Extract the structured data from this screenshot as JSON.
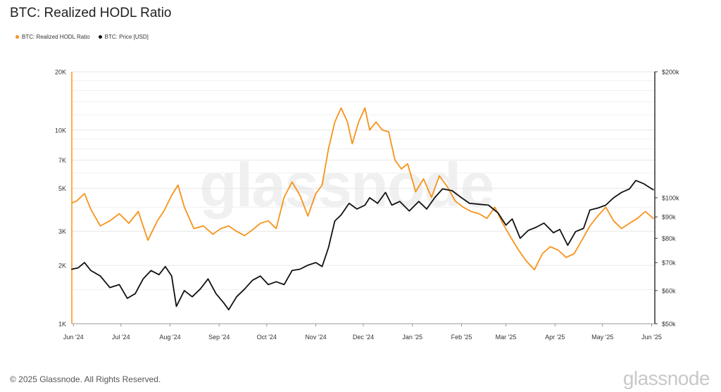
{
  "title": "BTC: Realized HODL Ratio",
  "footer": "© 2025 Glassnode. All Rights Reserved.",
  "brand": "glassnode",
  "watermark": "glassnode",
  "colors": {
    "hodl": "#f7931a",
    "price": "#111111",
    "grid": "#e6e6e6",
    "axis": "#333333"
  },
  "chart_data": {
    "type": "line",
    "title": "BTC: Realized HODL Ratio",
    "legend_position": "top-left",
    "grid": true,
    "x_ticks": [
      "Jun '24",
      "Jul '24",
      "Aug '24",
      "Sep '24",
      "Oct '24",
      "Nov '24",
      "Dec '24",
      "Jan '25",
      "Feb '25",
      "Mar '25",
      "Apr '25",
      "May '25",
      "Jun '25"
    ],
    "y_left": {
      "scale": "log",
      "range": [
        1000,
        20000
      ],
      "ticks": [
        1000,
        2000,
        3000,
        5000,
        7000,
        10000,
        20000
      ],
      "tick_labels": [
        "1K",
        "2K",
        "3K",
        "5K",
        "7K",
        "10K",
        "20K"
      ]
    },
    "y_right": {
      "scale": "log",
      "range": [
        50000,
        200000
      ],
      "ticks": [
        50000,
        60000,
        70000,
        80000,
        90000,
        100000,
        200000
      ],
      "tick_labels": [
        "$50k",
        "$60k",
        "$70k",
        "$80k",
        "$90k",
        "$100k",
        "$200k"
      ]
    },
    "series": [
      {
        "name": "BTC: Realized HODL Ratio",
        "axis": "left",
        "color": "#f7931a",
        "x": [
          "2024-05-31",
          "2024-06-03",
          "2024-06-08",
          "2024-06-12",
          "2024-06-18",
          "2024-06-24",
          "2024-06-30",
          "2024-07-06",
          "2024-07-12",
          "2024-07-18",
          "2024-07-24",
          "2024-07-28",
          "2024-08-02",
          "2024-08-06",
          "2024-08-10",
          "2024-08-16",
          "2024-08-22",
          "2024-08-28",
          "2024-09-02",
          "2024-09-07",
          "2024-09-12",
          "2024-09-17",
          "2024-09-22",
          "2024-09-27",
          "2024-10-02",
          "2024-10-07",
          "2024-10-12",
          "2024-10-17",
          "2024-10-22",
          "2024-10-27",
          "2024-11-01",
          "2024-11-05",
          "2024-11-09",
          "2024-11-13",
          "2024-11-17",
          "2024-11-21",
          "2024-11-24",
          "2024-11-28",
          "2024-12-02",
          "2024-12-05",
          "2024-12-09",
          "2024-12-13",
          "2024-12-17",
          "2024-12-21",
          "2024-12-25",
          "2024-12-29",
          "2025-01-03",
          "2025-01-08",
          "2025-01-13",
          "2025-01-18",
          "2025-01-23",
          "2025-01-28",
          "2025-02-02",
          "2025-02-07",
          "2025-02-12",
          "2025-02-17",
          "2025-02-22",
          "2025-02-27",
          "2025-03-04",
          "2025-03-09",
          "2025-03-14",
          "2025-03-19",
          "2025-03-24",
          "2025-03-29",
          "2025-04-03",
          "2025-04-08",
          "2025-04-13",
          "2025-04-18",
          "2025-04-23",
          "2025-04-28",
          "2025-05-03",
          "2025-05-08",
          "2025-05-13",
          "2025-05-18",
          "2025-05-23",
          "2025-05-28",
          "2025-06-02"
        ],
        "values": [
          4200,
          4300,
          4700,
          3900,
          3200,
          3400,
          3700,
          3300,
          3800,
          2700,
          3400,
          3800,
          4600,
          5200,
          4000,
          3100,
          3200,
          2900,
          3100,
          3200,
          3000,
          2850,
          3050,
          3300,
          3400,
          3100,
          4500,
          5400,
          4600,
          3600,
          4700,
          5200,
          8000,
          11000,
          13000,
          11000,
          8500,
          11000,
          13000,
          10000,
          11000,
          10000,
          9800,
          7000,
          6300,
          6700,
          4800,
          5600,
          4500,
          5800,
          5100,
          4300,
          4000,
          3800,
          3700,
          3500,
          4000,
          3300,
          2800,
          2400,
          2100,
          1900,
          2300,
          2500,
          2400,
          2200,
          2300,
          2700,
          3200,
          3600,
          4000,
          3400,
          3100,
          3300,
          3500,
          3800,
          3500
        ]
      },
      {
        "name": "BTC: Price [USD]",
        "axis": "right",
        "color": "#111111",
        "x": [
          "2024-05-31",
          "2024-06-04",
          "2024-06-08",
          "2024-06-12",
          "2024-06-18",
          "2024-06-24",
          "2024-06-30",
          "2024-07-05",
          "2024-07-10",
          "2024-07-15",
          "2024-07-20",
          "2024-07-25",
          "2024-07-29",
          "2024-08-02",
          "2024-08-05",
          "2024-08-10",
          "2024-08-15",
          "2024-08-20",
          "2024-08-25",
          "2024-08-30",
          "2024-09-04",
          "2024-09-07",
          "2024-09-12",
          "2024-09-17",
          "2024-09-22",
          "2024-09-27",
          "2024-10-02",
          "2024-10-07",
          "2024-10-12",
          "2024-10-17",
          "2024-10-22",
          "2024-10-27",
          "2024-11-01",
          "2024-11-05",
          "2024-11-09",
          "2024-11-13",
          "2024-11-17",
          "2024-11-22",
          "2024-11-27",
          "2024-12-02",
          "2024-12-05",
          "2024-12-10",
          "2024-12-15",
          "2024-12-19",
          "2024-12-24",
          "2024-12-30",
          "2025-01-05",
          "2025-01-10",
          "2025-01-15",
          "2025-01-20",
          "2025-01-26",
          "2025-02-01",
          "2025-02-06",
          "2025-02-12",
          "2025-02-18",
          "2025-02-24",
          "2025-03-01",
          "2025-03-05",
          "2025-03-10",
          "2025-03-15",
          "2025-03-20",
          "2025-03-25",
          "2025-03-31",
          "2025-04-04",
          "2025-04-09",
          "2025-04-14",
          "2025-04-19",
          "2025-04-23",
          "2025-04-28",
          "2025-05-03",
          "2025-05-08",
          "2025-05-13",
          "2025-05-18",
          "2025-05-22",
          "2025-05-27",
          "2025-06-02"
        ],
        "values": [
          67500,
          68000,
          70000,
          67000,
          65000,
          61000,
          62000,
          57500,
          59000,
          64000,
          67000,
          65500,
          68500,
          65000,
          55000,
          60000,
          58000,
          60500,
          64000,
          59000,
          56000,
          54000,
          58000,
          60500,
          63500,
          65000,
          62000,
          63000,
          62000,
          67000,
          67500,
          69000,
          70000,
          68500,
          76000,
          88000,
          91000,
          97000,
          94000,
          96000,
          100000,
          97000,
          103000,
          96000,
          98000,
          93000,
          98000,
          94000,
          100000,
          105000,
          104000,
          100000,
          97000,
          96500,
          96000,
          92000,
          86000,
          89000,
          80000,
          83500,
          85000,
          87000,
          82500,
          84000,
          77000,
          83000,
          84500,
          93500,
          94500,
          96000,
          100000,
          103000,
          105000,
          110000,
          108000,
          104500
        ]
      }
    ]
  }
}
